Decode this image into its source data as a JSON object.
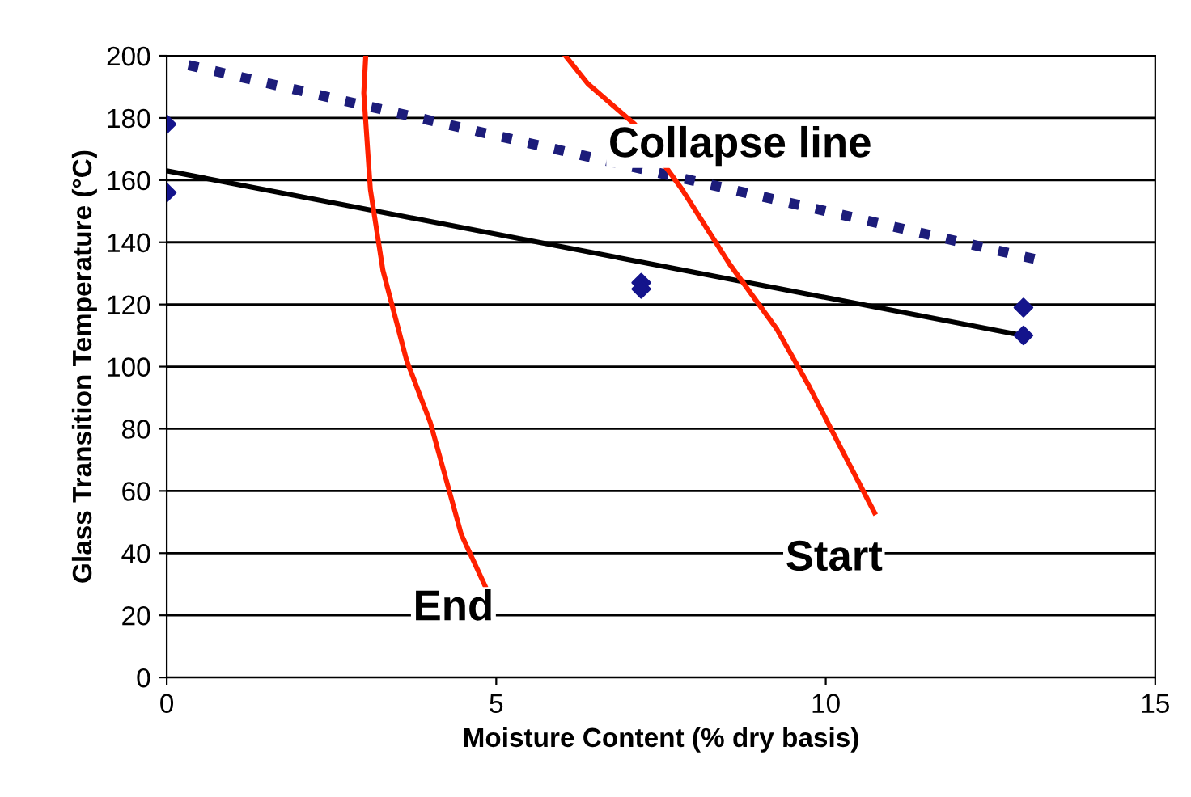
{
  "chart_data": {
    "type": "scatter",
    "xlabel": "Moisture Content (% dry basis)",
    "ylabel": "Glass Transition Temperature (°C)",
    "xlim": [
      0,
      15
    ],
    "xticks": [
      0,
      5,
      10,
      15
    ],
    "ylim": [
      0,
      200
    ],
    "yticks": [
      0,
      20,
      40,
      60,
      80,
      100,
      120,
      140,
      160,
      180,
      200
    ],
    "grid": "y",
    "series": [
      {
        "color": "#14148c",
        "marker": "diamond",
        "x": [
          0,
          0,
          7.2,
          7.2,
          13,
          13
        ],
        "values": [
          178,
          156,
          127,
          125,
          119,
          110
        ]
      },
      {
        "type": "line",
        "color": "#000000",
        "line_style": "solid",
        "marker": "none",
        "x": [
          0,
          13
        ],
        "values": [
          163,
          110
        ]
      },
      {
        "type": "line",
        "color": "#1c1c7a",
        "line_style": "dotted",
        "marker": "none",
        "x": [
          0.33,
          13.3
        ],
        "values": [
          197,
          134
        ]
      },
      {
        "type": "line",
        "color": "#ff2000",
        "line_style": "solid",
        "marker": "none",
        "x": [
          4.83,
          4.47,
          4.0,
          3.64,
          3.28,
          3.09,
          2.99,
          3.02,
          null,
          6.05,
          6.39,
          7.1,
          7.82,
          8.54,
          9.26,
          9.74,
          10.2,
          10.74
        ],
        "values": [
          29.5,
          46,
          82,
          102,
          131,
          157,
          188,
          200,
          null,
          200,
          191,
          178,
          157,
          133,
          112,
          94,
          75,
          53
        ]
      }
    ],
    "annotations": [
      "Collapse line",
      "End",
      "Start"
    ]
  }
}
